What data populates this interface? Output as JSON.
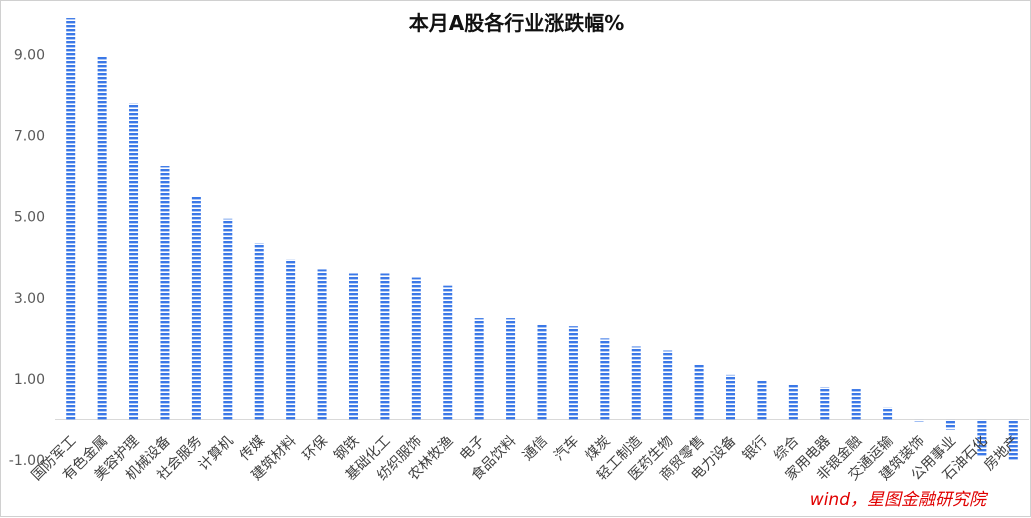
{
  "chart_data": {
    "type": "bar",
    "title": "本月A股各行业涨跌幅%",
    "source": "wind，星图金融研究院",
    "xlabel": "",
    "ylabel": "",
    "ylim": [
      -1.0,
      10.0
    ],
    "yticks": [
      -1.0,
      1.0,
      3.0,
      5.0,
      7.0,
      9.0
    ],
    "ytick_labels": [
      "-1.00",
      "1.00",
      "3.00",
      "5.00",
      "7.00",
      "9.00"
    ],
    "grid": false,
    "bar_color": "#3b78e7",
    "bar_style": "horizontal-stripes",
    "categories": [
      "国防军工",
      "有色金属",
      "美容护理",
      "机械设备",
      "社会服务",
      "计算机",
      "传媒",
      "建筑材料",
      "环保",
      "钢铁",
      "基础化工",
      "纺织服饰",
      "农林牧渔",
      "电子",
      "食品饮料",
      "通信",
      "汽车",
      "煤炭",
      "轻工制造",
      "医药生物",
      "商贸零售",
      "电力设备",
      "银行",
      "综合",
      "家用电器",
      "非银金融",
      "交通运输",
      "建筑装饰",
      "公用事业",
      "石油石化",
      "房地产"
    ],
    "values": [
      9.9,
      8.95,
      7.8,
      6.25,
      5.5,
      4.95,
      4.35,
      3.95,
      3.7,
      3.6,
      3.6,
      3.5,
      3.3,
      2.5,
      2.5,
      2.35,
      2.3,
      2.0,
      1.8,
      1.7,
      1.35,
      1.1,
      0.95,
      0.85,
      0.8,
      0.75,
      0.3,
      -0.05,
      -0.25,
      -0.9,
      -1.0
    ]
  }
}
